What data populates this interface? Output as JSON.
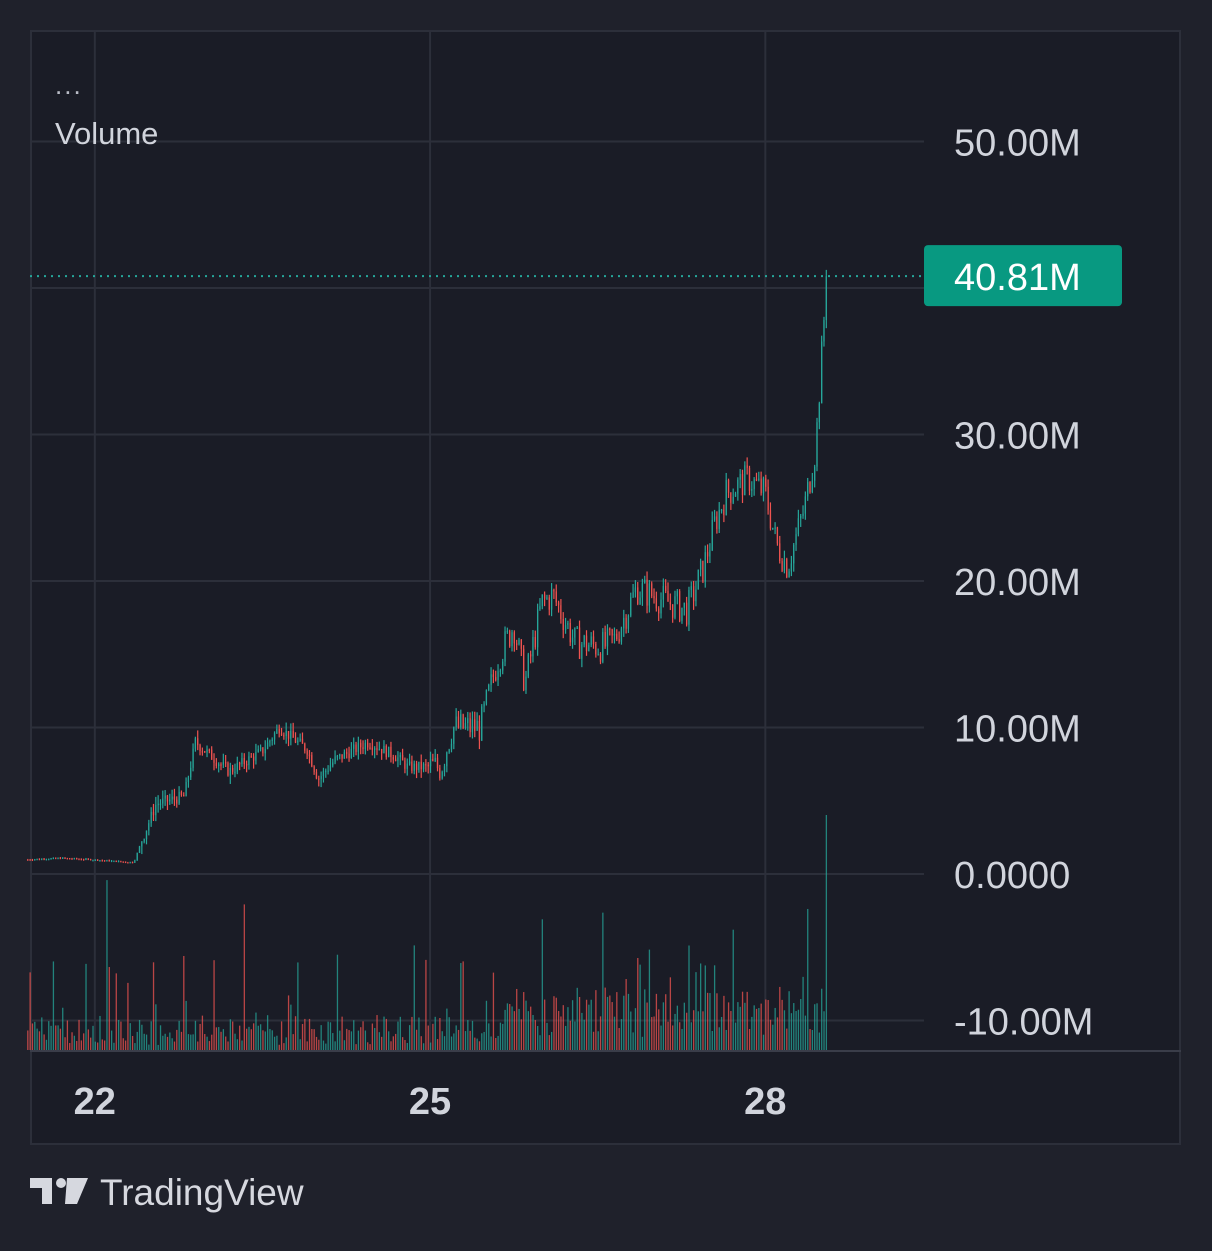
{
  "legend": {
    "menu": "...",
    "title": "Volume"
  },
  "brand": {
    "name": "TradingView",
    "logo_icon": "tradingview-logo-icon"
  },
  "colors": {
    "background": "#1a1c26",
    "grid": "#2c2f3a",
    "up": "#26a69a",
    "down": "#ef5350",
    "axis_text": "#d1d4dc",
    "badge": "#089981"
  },
  "chart_data": {
    "type": "candlestick",
    "title": "Volume",
    "ylim": [
      -12000000,
      56000000
    ],
    "y_ticks": [
      {
        "value": 50000000,
        "label": "50.00M"
      },
      {
        "value": 30000000,
        "label": "30.00M"
      },
      {
        "value": 20000000,
        "label": "20.00M"
      },
      {
        "value": 10000000,
        "label": "10.00M"
      },
      {
        "value": 0,
        "label": "0.0000"
      },
      {
        "value": -10000000,
        "label": "-10.00M"
      }
    ],
    "y_grid": [
      50000000,
      40000000,
      30000000,
      20000000,
      10000000,
      0,
      -10000000
    ],
    "x_ticks": [
      {
        "day": 22,
        "label": "22"
      },
      {
        "day": 25,
        "label": "25"
      },
      {
        "day": 28,
        "label": "28"
      }
    ],
    "x_range_days": [
      21.42,
      29.42
    ],
    "last_value": {
      "value": 40810000,
      "label": "40.81M"
    },
    "candles_per_day": 48,
    "start_day": 21.4,
    "close_path": [
      [
        21.4,
        1.0
      ],
      [
        21.7,
        1.1
      ],
      [
        21.95,
        1.0
      ],
      [
        22.35,
        0.8
      ],
      [
        22.42,
        2.3
      ],
      [
        22.55,
        4.8
      ],
      [
        22.8,
        5.3
      ],
      [
        22.9,
        9.0
      ],
      [
        23.2,
        7.0
      ],
      [
        23.5,
        8.4
      ],
      [
        23.65,
        10.0
      ],
      [
        23.9,
        8.5
      ],
      [
        24.0,
        6.5
      ],
      [
        24.15,
        7.8
      ],
      [
        24.45,
        9.0
      ],
      [
        24.7,
        8.0
      ],
      [
        24.8,
        7.3
      ],
      [
        25.1,
        7.3
      ],
      [
        25.2,
        10.0
      ],
      [
        25.45,
        10.0
      ],
      [
        25.6,
        14.5
      ],
      [
        25.75,
        17.0
      ],
      [
        25.85,
        13.0
      ],
      [
        26.0,
        18.5
      ],
      [
        26.1,
        19.0
      ],
      [
        26.3,
        15.8
      ],
      [
        26.55,
        15.5
      ],
      [
        26.65,
        16.0
      ],
      [
        26.85,
        19.5
      ],
      [
        27.0,
        19.0
      ],
      [
        27.15,
        18.5
      ],
      [
        27.3,
        18.0
      ],
      [
        27.45,
        21.0
      ],
      [
        27.55,
        24.0
      ],
      [
        27.65,
        26.0
      ],
      [
        27.85,
        27.0
      ],
      [
        28.0,
        26.0
      ],
      [
        28.1,
        22.5
      ],
      [
        28.2,
        21.0
      ],
      [
        28.35,
        25.0
      ],
      [
        28.45,
        29.0
      ],
      [
        28.55,
        40.81
      ]
    ]
  }
}
